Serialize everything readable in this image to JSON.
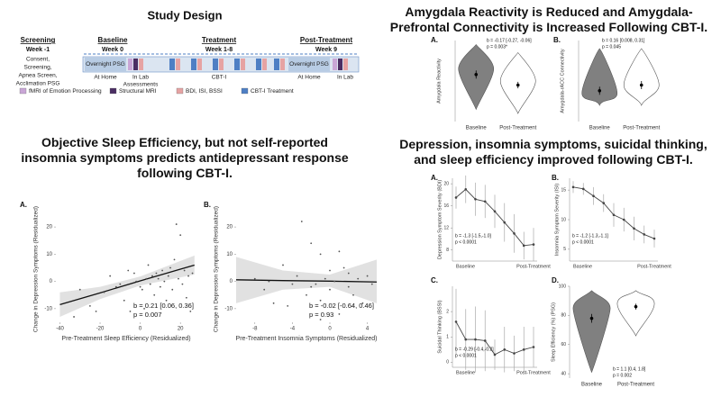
{
  "study_design": {
    "title": "Study Design",
    "phases": [
      {
        "name": "Screening",
        "week": "Week -1"
      },
      {
        "name": "Baseline",
        "week": "Week 0"
      },
      {
        "name": "Treatment",
        "week": "Week 1-8"
      },
      {
        "name": "Post-Treatment",
        "week": "Week 9"
      }
    ],
    "screening_description": [
      "Consent,",
      "Screening,",
      "Apnea Screen,",
      "Acclimation PSG"
    ],
    "timeline": {
      "baseline_psg": "Overnight PSG",
      "baseline_home": "At Home",
      "baseline_lab": [
        "In Lab",
        "Assessments"
      ],
      "treatment": "CBT-I",
      "post_psg": "Overnight PSG",
      "post_home": "At Home",
      "post_lab": "In Lab"
    },
    "legend": [
      {
        "name": "fMRI of Emotion Processing",
        "color": "#c9a6d6"
      },
      {
        "name": "Structural MRI",
        "color": "#4b2e63"
      },
      {
        "name": "BDI, ISI, BSSI",
        "color": "#e6a3a3"
      },
      {
        "name": "CBT-I Treatment",
        "color": "#4e7fc4"
      }
    ]
  },
  "section_titles": [
    "Objective Sleep Efficiency, but not self-reported insomnia symptoms predicts antidepressant response following CBT-I.",
    "Amygdala Reactivity is Reduced and Amygdala-Prefrontal Connectivity is Increased Following CBT-I.",
    "Depression, insomnia symptoms, suicidal thinking, and sleep efficiency improved following CBT-I."
  ],
  "chart_data": [
    {
      "type": "scatter",
      "label": "A.",
      "xlabel": "Pre-Treatment Sleep Efficiency (Residualized)",
      "ylabel": "Change in Depression Symptoms (Residualized)",
      "x": [
        -33,
        -30,
        -25,
        -22,
        -18,
        -15,
        -12,
        -10,
        -8,
        -6,
        -5,
        -3,
        -2,
        0,
        1,
        2,
        3,
        4,
        5,
        6,
        7,
        8,
        9,
        10,
        11,
        12,
        13,
        14,
        15,
        16,
        17,
        18,
        19,
        20,
        21,
        22,
        23,
        24,
        25,
        26
      ],
      "y": [
        -13,
        -3,
        -9,
        -11,
        -4,
        2,
        -2,
        -1,
        -7,
        4,
        -11,
        3,
        0,
        -2,
        -3,
        -10,
        1,
        6,
        -1,
        2,
        -5,
        3,
        1,
        -2,
        4,
        0,
        -7,
        2,
        5,
        -3,
        8,
        21,
        1,
        17,
        -1,
        4,
        -6,
        2,
        -11,
        3
      ],
      "color": "#555555",
      "fit": {
        "x": [
          -40,
          -20,
          0,
          20,
          27
        ],
        "y": [
          -8.5,
          -4.2,
          0.2,
          4.5,
          6
        ],
        "lower": [
          -13,
          -6.5,
          -1.5,
          1.5,
          2.5
        ],
        "upper": [
          -4,
          -2,
          1.8,
          7.5,
          9.5
        ]
      },
      "xlim": [
        -42,
        28
      ],
      "ylim": [
        -15,
        24
      ],
      "xticks": [
        -40,
        -20,
        0,
        20
      ],
      "yticks": [
        -10,
        0,
        10,
        20
      ],
      "annotations": [
        "b = 0.21 [0.06, 0.36]",
        "p = 0.007"
      ]
    },
    {
      "type": "scatter",
      "label": "B.",
      "xlabel": "Pre-Treatment Insomnia Symptoms (Residualized)",
      "ylabel": "Change in Depression Symptoms (Residualized)",
      "x": [
        -8,
        -7,
        -6.5,
        -6,
        -5,
        -4.5,
        -4,
        -3.5,
        -3,
        -2.5,
        -2,
        -2,
        -1.5,
        -1,
        -1,
        -1,
        -0.5,
        0,
        0,
        0.5,
        1,
        1,
        1.5,
        2,
        2,
        2.5,
        3,
        3.5,
        4,
        4.5
      ],
      "y": [
        1,
        -3,
        0,
        -8,
        6,
        -9,
        -1,
        2,
        22,
        -5,
        -2,
        14,
        -1,
        10,
        -7,
        -14,
        1,
        4,
        -3,
        0,
        -12,
        11,
        5,
        -2,
        3,
        -5,
        1,
        -8,
        2,
        -1
      ],
      "color": "#555555",
      "fit": {
        "x": [
          -10,
          -5,
          0,
          5
        ],
        "y": [
          0.6,
          0.3,
          0.1,
          -0.2
        ],
        "lower": [
          -8,
          -3,
          -2,
          -8
        ],
        "upper": [
          9,
          4,
          2.5,
          8
        ]
      },
      "xlim": [
        -10,
        5
      ],
      "ylim": [
        -15,
        24
      ],
      "xticks": [
        -8,
        -4,
        0,
        4
      ],
      "yticks": [
        -10,
        0,
        10,
        20
      ],
      "annotations": [
        "b = -0.02 [-0.64, 0.46]",
        "p = 0.93"
      ]
    },
    {
      "type": "violin",
      "label": "A.",
      "ylabel": "Amygdala Reactivity",
      "categories": [
        "Baseline",
        "Post-Treatment"
      ],
      "colors": [
        "#808080",
        "#ffffff"
      ],
      "values": [
        0.58,
        0.45
      ],
      "errors": [
        0.05,
        0.04
      ],
      "ranges": [
        [
          0.15,
          0.95
        ],
        [
          0.1,
          0.85
        ]
      ],
      "modes": [
        0.65,
        0.5
      ],
      "ylim": [
        0,
        1
      ],
      "annotations": [
        "b = -0.17 [-0.27, -0.06]",
        "p = 0.003*"
      ]
    },
    {
      "type": "violin",
      "label": "B.",
      "ylabel": "Amygdala-rACC Connectivity",
      "categories": [
        "Baseline",
        "Post-Treatment"
      ],
      "colors": [
        "#808080",
        "#ffffff"
      ],
      "values": [
        0.38,
        0.45
      ],
      "errors": [
        0.05,
        0.05
      ],
      "ranges": [
        [
          0.2,
          0.9
        ],
        [
          0.2,
          0.9
        ]
      ],
      "modes": [
        0.35,
        0.45
      ],
      "ylim": [
        0,
        1
      ],
      "annotations": [
        "b = 0.16 [0.008, 0.31]",
        "p = 0.045"
      ]
    },
    {
      "type": "line",
      "label": "A.",
      "ylabel": "Depression Symptom Severity (BDI)",
      "categories": [
        "Baseline",
        null,
        null,
        null,
        null,
        null,
        null,
        null,
        "Post-Treatment"
      ],
      "values": [
        17.5,
        19,
        17.2,
        16.8,
        15,
        13,
        11,
        8.8,
        9
      ],
      "errors": [
        2,
        2.5,
        3,
        3,
        3,
        3.5,
        3.5,
        2.5,
        3
      ],
      "color": "#444444",
      "ylim": [
        6,
        21
      ],
      "yticks": [
        8,
        12,
        16,
        20
      ],
      "annotations": [
        "b = -1.3 [-1.5,-1.0]",
        "p < 0.0001"
      ]
    },
    {
      "type": "line",
      "label": "B.",
      "ylabel": "Insomnia Symptom Severity (ISI)",
      "categories": [
        "Baseline",
        null,
        null,
        null,
        null,
        null,
        null,
        null,
        "Post-Treatment"
      ],
      "values": [
        15.5,
        15.2,
        14,
        12.8,
        10.8,
        10,
        8.5,
        7.5,
        6.8
      ],
      "errors": [
        1,
        1,
        1.5,
        1.5,
        2,
        2,
        2,
        1.5,
        1.5
      ],
      "color": "#444444",
      "ylim": [
        3,
        17
      ],
      "yticks": [
        5,
        10,
        15
      ],
      "annotations": [
        "b = -1.2 [-1.3,-1.1]",
        "p < 0.0001"
      ]
    },
    {
      "type": "line",
      "label": "C.",
      "ylabel": "Suicidal Thinking (BSSI)",
      "categories": [
        "Baseline",
        null,
        null,
        null,
        null,
        null,
        null,
        null,
        "Post-Treatment"
      ],
      "values": [
        1.6,
        0.9,
        0.9,
        0.85,
        0.3,
        0.5,
        0.35,
        0.5,
        0.6
      ],
      "errors": [
        1.3,
        1.2,
        1.3,
        1.2,
        0.6,
        0.9,
        0.7,
        0.9,
        0.8
      ],
      "color": "#444444",
      "ylim": [
        -0.2,
        3
      ],
      "yticks": [
        0,
        1,
        2
      ],
      "annotations": [
        "b = -0.29 [-0.4,-0.2]",
        "p < 0.0001"
      ]
    },
    {
      "type": "violin",
      "label": "D.",
      "ylabel": "Sleep Efficiency (%) (PSG)",
      "categories": [
        "Baseline",
        "Post-Treatment"
      ],
      "colors": [
        "#808080",
        "#ffffff"
      ],
      "values": [
        78,
        86
      ],
      "errors": [
        3,
        2
      ],
      "ranges": [
        [
          41,
          97
        ],
        [
          66,
          97
        ]
      ],
      "modes": [
        85,
        88
      ],
      "ylim": [
        37,
        100
      ],
      "yticks": [
        40,
        60,
        80,
        100
      ],
      "annotations": [
        "b = 1.1 [0.4, 1.8]",
        "p = 0.002"
      ]
    }
  ]
}
